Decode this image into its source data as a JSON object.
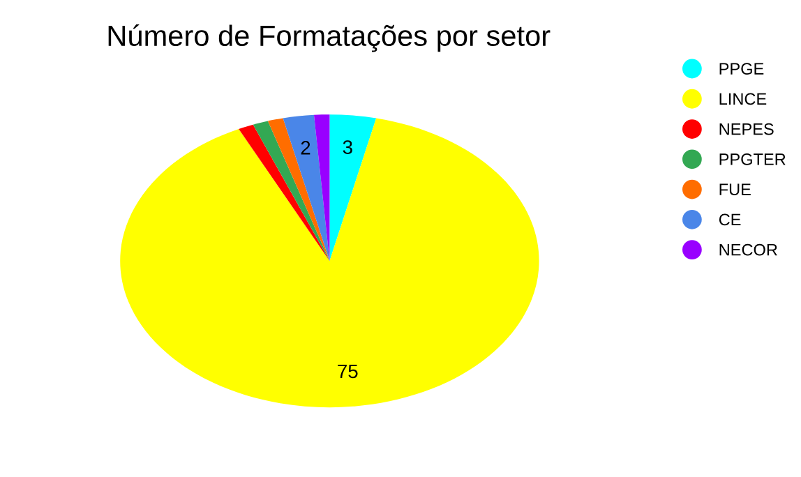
{
  "chart_data": {
    "type": "pie",
    "title": "Número de Formatações por setor",
    "categories": [
      "PPGE",
      "LINCE",
      "NEPES",
      "PPGTER",
      "FUE",
      "CE",
      "NECOR"
    ],
    "values": [
      3,
      75,
      1,
      1,
      1,
      2,
      1
    ],
    "colors": [
      "#00ffff",
      "#ffff00",
      "#ff0000",
      "#33a853",
      "#ff6d00",
      "#4a86e8",
      "#9900ff"
    ],
    "value_labels": [
      "3",
      "75",
      null,
      null,
      null,
      "2",
      null
    ],
    "legend": "top right"
  }
}
